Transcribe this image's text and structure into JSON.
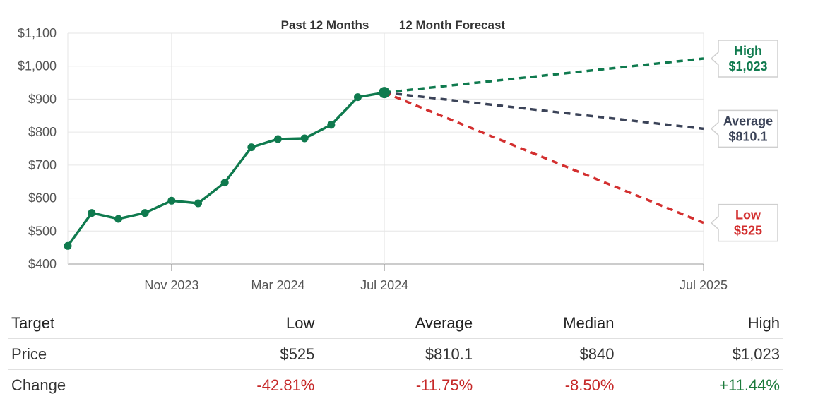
{
  "colors": {
    "actual": "#0f7a4e",
    "high": "#0f7a4e",
    "average": "#3b4358",
    "low": "#d32f2f",
    "negative": "#c62828",
    "positive": "#1b7a3b"
  },
  "chart_data": {
    "type": "line",
    "headers": [
      "Past 12 Months",
      "12 Month Forecast"
    ],
    "ylim": [
      400,
      1100
    ],
    "y_ticks": [
      400,
      500,
      600,
      700,
      800,
      900,
      1000,
      1100
    ],
    "y_tick_labels": [
      "$400",
      "$500",
      "$600",
      "$700",
      "$800",
      "$900",
      "$1,000",
      "$1,100"
    ],
    "x_ticks": [
      "Nov 2023",
      "Mar 2024",
      "Jul 2024",
      "Jul 2025"
    ],
    "x_tick_positions": [
      3,
      7,
      11,
      23
    ],
    "xlim": [
      -0.9,
      23
    ],
    "series": [
      {
        "x": [
          -0.9,
          0,
          1,
          2,
          3,
          4,
          5,
          6,
          7,
          8,
          9,
          10,
          11
        ],
        "values": [
          455,
          555,
          537,
          555,
          592,
          584,
          647,
          754,
          779,
          781,
          822,
          906,
          920
        ]
      }
    ],
    "forecast": {
      "start": {
        "x": 11,
        "value": 920
      },
      "end_x": 23,
      "targets": [
        {
          "name": "High",
          "value": 1023,
          "label": "$1,023"
        },
        {
          "name": "Average",
          "value": 810.1,
          "label": "$810.1"
        },
        {
          "name": "Low",
          "value": 525,
          "label": "$525"
        }
      ]
    }
  },
  "table": {
    "headers": [
      "Target",
      "Low",
      "Average",
      "Median",
      "High"
    ],
    "rows": [
      {
        "cells": [
          "Price",
          "$525",
          "$810.1",
          "$840",
          "$1,023"
        ]
      },
      {
        "cells": [
          "Change",
          "-42.81%",
          "-11.75%",
          "-8.50%",
          "+11.44%"
        ]
      }
    ]
  }
}
